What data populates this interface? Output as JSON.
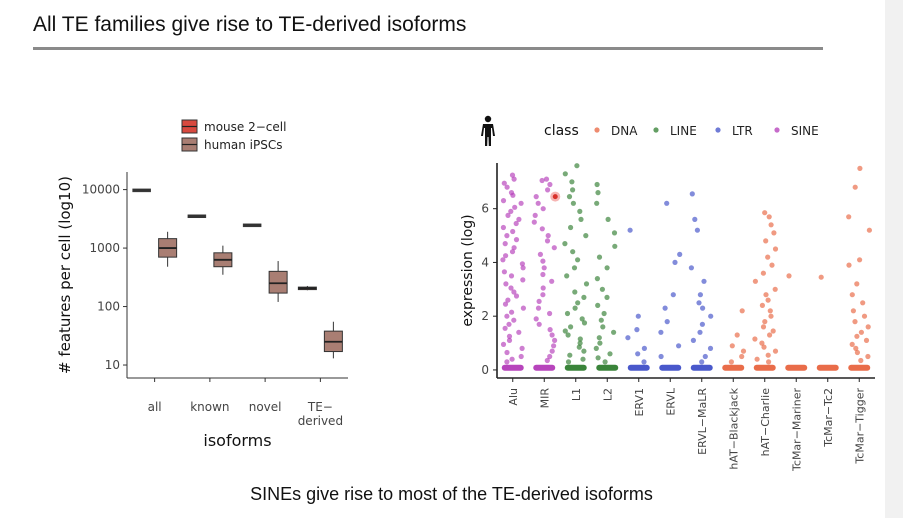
{
  "slide": {
    "title": "All TE families give rise to TE-derived isoforms",
    "subtitle": "SINEs give rise to most of the TE-derived isoforms"
  },
  "chart_data": [
    {
      "type": "boxplot",
      "xlabel": "isoforms",
      "ylabel": "# features per cell (log10)",
      "y_scale": "log10",
      "ylim": [
        6,
        20000
      ],
      "yticks": [
        10,
        100,
        1000,
        10000
      ],
      "ytick_labels": [
        "10",
        "100",
        "1000",
        "10000"
      ],
      "categories": [
        "all",
        "known",
        "novel",
        "TE-derived"
      ],
      "category_labels": [
        [
          "all"
        ],
        [
          "known"
        ],
        [
          "novel"
        ],
        [
          "TE−",
          "derived"
        ]
      ],
      "legend": {
        "placement": "top",
        "entries": [
          {
            "name": "mouse 2−cell",
            "color": "#d8493f"
          },
          {
            "name": "human iPSCs",
            "color": "#a97e73"
          }
        ]
      },
      "series": [
        {
          "name": "mouse 2−cell",
          "color": "#d8493f",
          "boxes": [
            {
              "min": 9700,
              "q1": 9700,
              "median": 9700,
              "q3": 9700,
              "max": 9700
            },
            {
              "min": 3500,
              "q1": 3500,
              "median": 3500,
              "q3": 3500,
              "max": 3500
            },
            {
              "min": 2450,
              "q1": 2450,
              "median": 2450,
              "q3": 2450,
              "max": 2450
            },
            {
              "min": 190,
              "q1": 195,
              "median": 205,
              "q3": 215,
              "max": 225
            }
          ]
        },
        {
          "name": "human iPSCs",
          "color": "#a97e73",
          "boxes": [
            {
              "min": 480,
              "q1": 700,
              "median": 1000,
              "q3": 1450,
              "max": 1900
            },
            {
              "min": 350,
              "q1": 480,
              "median": 630,
              "q3": 830,
              "max": 1100
            },
            {
              "min": 120,
              "q1": 170,
              "median": 250,
              "q3": 400,
              "max": 600
            },
            {
              "min": 13,
              "q1": 17,
              "median": 25,
              "q3": 38,
              "max": 55
            }
          ]
        }
      ]
    },
    {
      "type": "scatter",
      "legend_title": "class",
      "xlabel": "",
      "ylabel": "expression (log)",
      "ylim": [
        -0.3,
        7.7
      ],
      "yticks": [
        0,
        2,
        4,
        6
      ],
      "categories": [
        "Alu",
        "MIR",
        "L1",
        "L2",
        "ERV1",
        "ERVL",
        "ERVL−MaLR",
        "hAT−Blackjack",
        "hAT−Charlie",
        "TcMar−Mariner",
        "TcMar−Tc2",
        "TcMar−Tigger"
      ],
      "category_class": [
        "SINE",
        "SINE",
        "LINE",
        "LINE",
        "LTR",
        "LTR",
        "LTR",
        "DNA",
        "DNA",
        "DNA",
        "DNA",
        "DNA"
      ],
      "classes": [
        {
          "name": "DNA",
          "color": "#e8643f"
        },
        {
          "name": "LINE",
          "color": "#2f7d2f"
        },
        {
          "name": "LTR",
          "color": "#3f4fc8"
        },
        {
          "name": "SINE",
          "color": "#b33ab8"
        }
      ],
      "legend_placement": "top",
      "highlighted_point": {
        "category": "MIR",
        "y": 6.45
      },
      "icon": "human-figure-icon",
      "points": {
        "Alu": [
          7.25,
          7.1,
          6.95,
          6.8,
          6.6,
          6.5,
          6.3,
          6.2,
          6.05,
          5.9,
          5.75,
          5.6,
          5.45,
          5.3,
          5.15,
          5.0,
          4.85,
          4.7,
          4.55,
          4.4,
          4.25,
          4.1,
          3.95,
          3.8,
          3.65,
          3.5,
          3.35,
          3.2,
          3.05,
          2.9,
          2.75,
          2.6,
          2.45,
          2.3,
          2.15,
          2.0,
          1.85,
          1.7,
          1.55,
          1.4,
          1.25,
          1.1,
          0.95,
          0.8,
          0.65,
          0.5,
          0.4,
          0.3
        ],
        "MIR": [
          7.1,
          7.05,
          6.9,
          6.7,
          6.45,
          6.2,
          6.0,
          5.75,
          5.5,
          5.25,
          5.0,
          4.8,
          4.55,
          4.3,
          4.05,
          3.8,
          3.55,
          3.3,
          3.05,
          2.8,
          2.55,
          2.3,
          2.1,
          1.9,
          1.7,
          1.5,
          1.3,
          1.1,
          0.9,
          0.7,
          0.5,
          0.35
        ],
        "L1": [
          7.6,
          7.3,
          7.0,
          6.7,
          6.45,
          6.2,
          5.9,
          5.6,
          5.3,
          5.0,
          4.7,
          4.4,
          4.1,
          3.8,
          3.5,
          3.2,
          2.9,
          2.7,
          2.5,
          2.3,
          2.1,
          1.9,
          1.75,
          1.6,
          1.45,
          1.3,
          1.15,
          1.0,
          0.85,
          0.7,
          0.55,
          0.4,
          0.3
        ],
        "L2": [
          6.9,
          6.6,
          6.2,
          5.6,
          5.1,
          4.6,
          4.2,
          3.8,
          3.4,
          3.0,
          2.7,
          2.4,
          2.1,
          1.85,
          1.6,
          1.4,
          1.2,
          1.0,
          0.8,
          0.6,
          0.45,
          0.3
        ],
        "ERV1": [
          5.2,
          2.0,
          1.5,
          1.2,
          0.8,
          0.6,
          0.3
        ],
        "ERVL": [
          6.2,
          4.3,
          4.0,
          2.8,
          2.3,
          1.8,
          1.4,
          0.9,
          0.5
        ],
        "ERVL−MaLR": [
          6.55,
          5.6,
          5.2,
          3.8,
          3.3,
          2.8,
          2.5,
          2.3,
          2.0,
          1.7,
          1.4,
          1.1,
          0.8,
          0.5,
          0.3
        ],
        "hAT−Blackjack": [
          2.2,
          1.3,
          0.9,
          0.7,
          0.5,
          0.3
        ],
        "hAT−Charlie": [
          5.85,
          5.7,
          5.4,
          5.1,
          4.8,
          4.5,
          4.2,
          3.9,
          3.6,
          3.3,
          3.0,
          2.8,
          2.6,
          2.4,
          2.2,
          2.0,
          1.8,
          1.6,
          1.45,
          1.3,
          1.15,
          1.0,
          0.85,
          0.7,
          0.55,
          0.4,
          0.3
        ],
        "TcMar−Mariner": [
          3.5
        ],
        "TcMar−Tc2": [
          3.45
        ],
        "TcMar−Tigger": [
          7.5,
          6.8,
          5.7,
          5.2,
          4.1,
          3.9,
          3.2,
          2.8,
          2.5,
          2.2,
          2.0,
          1.8,
          1.6,
          1.4,
          1.25,
          1.1,
          0.95,
          0.8,
          0.65,
          0.5,
          0.35
        ]
      },
      "baseline_value": 0.08
    }
  ]
}
